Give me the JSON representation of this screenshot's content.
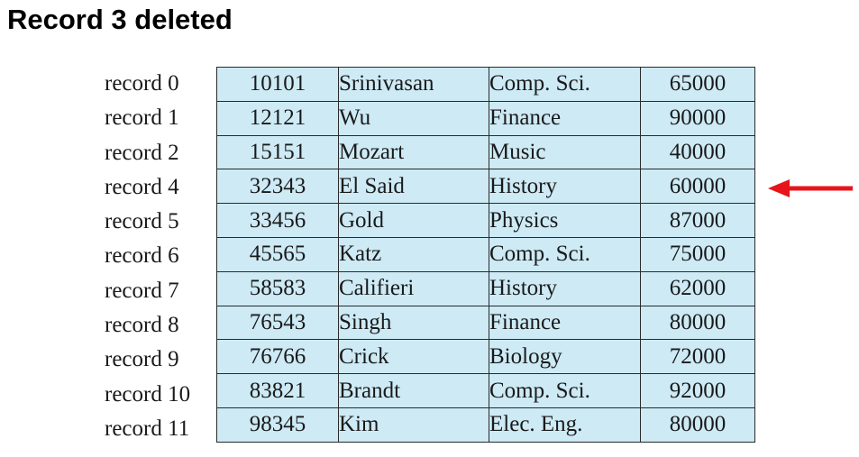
{
  "title": "Record 3 deleted",
  "records": [
    {
      "label": "record 0",
      "id": "10101",
      "name": "Srinivasan",
      "dept": "Comp. Sci.",
      "salary": "65000"
    },
    {
      "label": "record 1",
      "id": "12121",
      "name": "Wu",
      "dept": "Finance",
      "salary": "90000"
    },
    {
      "label": "record 2",
      "id": "15151",
      "name": "Mozart",
      "dept": "Music",
      "salary": "40000"
    },
    {
      "label": "record 4",
      "id": "32343",
      "name": "El Said",
      "dept": "History",
      "salary": "60000"
    },
    {
      "label": "record 5",
      "id": "33456",
      "name": "Gold",
      "dept": "Physics",
      "salary": "87000"
    },
    {
      "label": "record 6",
      "id": "45565",
      "name": "Katz",
      "dept": "Comp. Sci.",
      "salary": "75000"
    },
    {
      "label": "record 7",
      "id": "58583",
      "name": "Califieri",
      "dept": "History",
      "salary": "62000"
    },
    {
      "label": "record 8",
      "id": "76543",
      "name": "Singh",
      "dept": "Finance",
      "salary": "80000"
    },
    {
      "label": "record 9",
      "id": "76766",
      "name": "Crick",
      "dept": "Biology",
      "salary": "72000"
    },
    {
      "label": "record 10",
      "id": "83821",
      "name": "Brandt",
      "dept": "Comp. Sci.",
      "salary": "92000"
    },
    {
      "label": "record 11",
      "id": "98345",
      "name": "Kim",
      "dept": "Elec. Eng.",
      "salary": "80000"
    }
  ],
  "arrow": {
    "icon": "left-arrow-icon",
    "color": "#e8141b",
    "points_to_row": 3
  }
}
